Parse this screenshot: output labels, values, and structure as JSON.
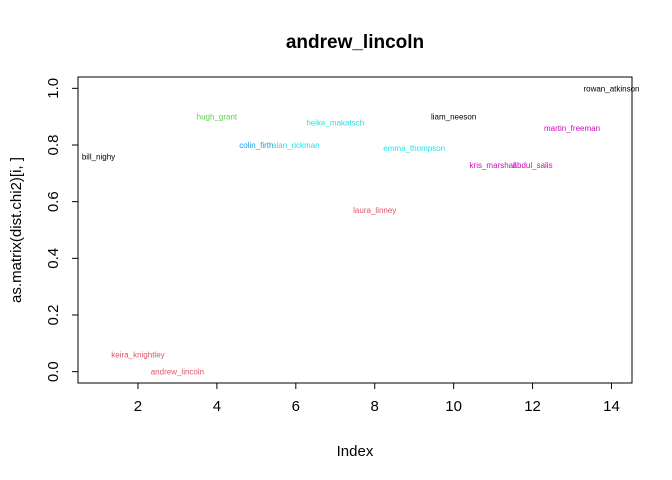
{
  "chart_data": {
    "type": "scatter",
    "title": "andrew_lincoln",
    "xlabel": "Index",
    "ylabel": "as.matrix(dist.chi2)[i, ]",
    "xlim": [
      0.48,
      14.52
    ],
    "ylim": [
      -0.04,
      1.04
    ],
    "x_ticks": [
      2,
      4,
      6,
      8,
      10,
      12,
      14
    ],
    "y_ticks": [
      0.0,
      0.2,
      0.4,
      0.6,
      0.8,
      1.0
    ],
    "x_tick_labels": [
      "2",
      "4",
      "6",
      "8",
      "10",
      "12",
      "14"
    ],
    "y_tick_labels": [
      "0.0",
      "0.2",
      "0.4",
      "0.6",
      "0.8",
      "1.0"
    ],
    "points": [
      {
        "label": "bill_nighy",
        "x": 1,
        "y": 0.76,
        "color": "#000000"
      },
      {
        "label": "keira_knightley",
        "x": 2,
        "y": 0.06,
        "color": "#DF536B"
      },
      {
        "label": "andrew_lincoln",
        "x": 3,
        "y": 0.0,
        "color": "#DF536B"
      },
      {
        "label": "hugh_grant",
        "x": 4,
        "y": 0.9,
        "color": "#61D04F"
      },
      {
        "label": "colin_firth",
        "x": 5,
        "y": 0.8,
        "color": "#2297E6"
      },
      {
        "label": "alan_rickman",
        "x": 6,
        "y": 0.8,
        "color": "#28E2E5"
      },
      {
        "label": "heike_makatsch",
        "x": 7,
        "y": 0.88,
        "color": "#28E2E5"
      },
      {
        "label": "laura_linney",
        "x": 8,
        "y": 0.57,
        "color": "#DF536B"
      },
      {
        "label": "emma_thompson",
        "x": 9,
        "y": 0.79,
        "color": "#28E2E5"
      },
      {
        "label": "liam_neeson",
        "x": 10,
        "y": 0.9,
        "color": "#000000"
      },
      {
        "label": "kris_marshall",
        "x": 11,
        "y": 0.73,
        "color": "#CD0BBC"
      },
      {
        "label": "abdul_salis",
        "x": 12,
        "y": 0.73,
        "color": "#CD0BBC"
      },
      {
        "label": "martin_freeman",
        "x": 13,
        "y": 0.86,
        "color": "#CD0BBC"
      },
      {
        "label": "rowan_atkinson",
        "x": 14,
        "y": 1.0,
        "color": "#000000"
      }
    ]
  }
}
